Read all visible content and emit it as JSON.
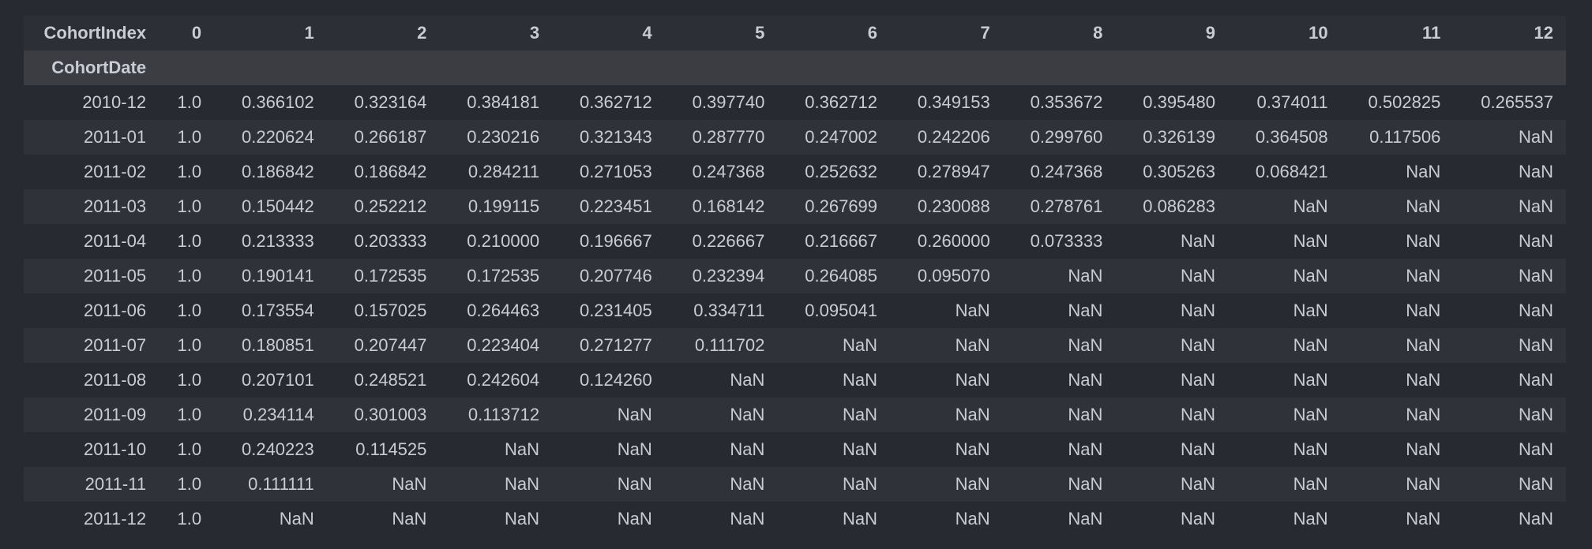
{
  "table": {
    "column_index_name": "CohortIndex",
    "row_index_name": "CohortDate",
    "columns": [
      "0",
      "1",
      "2",
      "3",
      "4",
      "5",
      "6",
      "7",
      "8",
      "9",
      "10",
      "11",
      "12"
    ],
    "rows": [
      {
        "date": "2010-12",
        "values": [
          "1.0",
          "0.366102",
          "0.323164",
          "0.384181",
          "0.362712",
          "0.397740",
          "0.362712",
          "0.349153",
          "0.353672",
          "0.395480",
          "0.374011",
          "0.502825",
          "0.265537"
        ]
      },
      {
        "date": "2011-01",
        "values": [
          "1.0",
          "0.220624",
          "0.266187",
          "0.230216",
          "0.321343",
          "0.287770",
          "0.247002",
          "0.242206",
          "0.299760",
          "0.326139",
          "0.364508",
          "0.117506",
          "NaN"
        ]
      },
      {
        "date": "2011-02",
        "values": [
          "1.0",
          "0.186842",
          "0.186842",
          "0.284211",
          "0.271053",
          "0.247368",
          "0.252632",
          "0.278947",
          "0.247368",
          "0.305263",
          "0.068421",
          "NaN",
          "NaN"
        ]
      },
      {
        "date": "2011-03",
        "values": [
          "1.0",
          "0.150442",
          "0.252212",
          "0.199115",
          "0.223451",
          "0.168142",
          "0.267699",
          "0.230088",
          "0.278761",
          "0.086283",
          "NaN",
          "NaN",
          "NaN"
        ]
      },
      {
        "date": "2011-04",
        "values": [
          "1.0",
          "0.213333",
          "0.203333",
          "0.210000",
          "0.196667",
          "0.226667",
          "0.216667",
          "0.260000",
          "0.073333",
          "NaN",
          "NaN",
          "NaN",
          "NaN"
        ]
      },
      {
        "date": "2011-05",
        "values": [
          "1.0",
          "0.190141",
          "0.172535",
          "0.172535",
          "0.207746",
          "0.232394",
          "0.264085",
          "0.095070",
          "NaN",
          "NaN",
          "NaN",
          "NaN",
          "NaN"
        ]
      },
      {
        "date": "2011-06",
        "values": [
          "1.0",
          "0.173554",
          "0.157025",
          "0.264463",
          "0.231405",
          "0.334711",
          "0.095041",
          "NaN",
          "NaN",
          "NaN",
          "NaN",
          "NaN",
          "NaN"
        ]
      },
      {
        "date": "2011-07",
        "values": [
          "1.0",
          "0.180851",
          "0.207447",
          "0.223404",
          "0.271277",
          "0.111702",
          "NaN",
          "NaN",
          "NaN",
          "NaN",
          "NaN",
          "NaN",
          "NaN"
        ]
      },
      {
        "date": "2011-08",
        "values": [
          "1.0",
          "0.207101",
          "0.248521",
          "0.242604",
          "0.124260",
          "NaN",
          "NaN",
          "NaN",
          "NaN",
          "NaN",
          "NaN",
          "NaN",
          "NaN"
        ]
      },
      {
        "date": "2011-09",
        "values": [
          "1.0",
          "0.234114",
          "0.301003",
          "0.113712",
          "NaN",
          "NaN",
          "NaN",
          "NaN",
          "NaN",
          "NaN",
          "NaN",
          "NaN",
          "NaN"
        ]
      },
      {
        "date": "2011-10",
        "values": [
          "1.0",
          "0.240223",
          "0.114525",
          "NaN",
          "NaN",
          "NaN",
          "NaN",
          "NaN",
          "NaN",
          "NaN",
          "NaN",
          "NaN",
          "NaN"
        ]
      },
      {
        "date": "2011-11",
        "values": [
          "1.0",
          "0.111111",
          "NaN",
          "NaN",
          "NaN",
          "NaN",
          "NaN",
          "NaN",
          "NaN",
          "NaN",
          "NaN",
          "NaN",
          "NaN"
        ]
      },
      {
        "date": "2011-12",
        "values": [
          "1.0",
          "NaN",
          "NaN",
          "NaN",
          "NaN",
          "NaN",
          "NaN",
          "NaN",
          "NaN",
          "NaN",
          "NaN",
          "NaN",
          "NaN"
        ]
      }
    ]
  }
}
